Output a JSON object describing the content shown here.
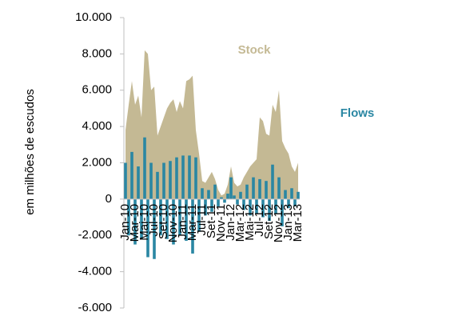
{
  "chart_data": {
    "type": "area-bar",
    "y_label": "em milhões de escudos",
    "categories": [
      "Jan-10",
      null,
      null,
      "Mar-10",
      null,
      null,
      "Mai-10",
      null,
      null,
      "Jul-10",
      null,
      null,
      "Set-10",
      null,
      null,
      "Nov-10",
      null,
      null,
      "Jan-11",
      null,
      null,
      "Mar-11",
      null,
      null,
      "Jul-11",
      null,
      null,
      "Set-11",
      null,
      null,
      "Nov-11",
      null,
      null,
      "Jan-12",
      null,
      null,
      "Mar-12",
      null,
      null,
      "Mai-12",
      null,
      null,
      "Jul-12",
      null,
      null,
      "Set-12",
      null,
      null,
      "Nov-12",
      null,
      null,
      "Jan-13",
      null,
      null,
      "Mar-13"
    ],
    "series": [
      {
        "name": "Stock",
        "color": "#c4b994",
        "kind": "area",
        "values": [
          3800,
          5200,
          6500,
          5200,
          5700,
          4500,
          8200,
          8000,
          6000,
          6200,
          3500,
          4000,
          4500,
          5000,
          5300,
          5500,
          4800,
          5400,
          5000,
          6500,
          6600,
          6800,
          3800,
          2500,
          1000,
          900,
          1200,
          1500,
          1100,
          500,
          200,
          300,
          800,
          1800,
          900,
          700,
          800,
          1200,
          1500,
          1800,
          2000,
          2200,
          4500,
          4300,
          3600,
          3500,
          5200,
          4800,
          6000,
          3200,
          2800,
          2500,
          1800,
          1500,
          2000
        ]
      },
      {
        "name": "Flows",
        "color": "#2a87a3",
        "kind": "bar",
        "values": [
          2000,
          -2000,
          2600,
          -2500,
          1800,
          -2200,
          3400,
          -3200,
          2000,
          -3300,
          1500,
          -2000,
          2000,
          -2200,
          2100,
          -2500,
          2300,
          -2000,
          2400,
          -2300,
          2400,
          -3000,
          2300,
          -1800,
          600,
          -900,
          500,
          -700,
          800,
          -400,
          100,
          -200,
          300,
          1200,
          200,
          -300,
          400,
          -600,
          800,
          -900,
          1200,
          -800,
          1100,
          -1000,
          1000,
          -1200,
          1900,
          -800,
          1200,
          -1500,
          500,
          -500,
          600,
          -400,
          400
        ]
      }
    ],
    "ylim": [
      -6000,
      10000
    ],
    "yticks": [
      {
        "value": -6000,
        "label": "-6.000"
      },
      {
        "value": -4000,
        "label": "-4.000"
      },
      {
        "value": -2000,
        "label": "-2.000"
      },
      0,
      {
        "value": 2000,
        "label": "2.000"
      },
      {
        "value": 4000,
        "label": "4.000"
      },
      {
        "value": 6000,
        "label": "6.000"
      },
      {
        "value": 8000,
        "label": "8.000"
      },
      {
        "value": 10000,
        "label": "10.000"
      }
    ]
  }
}
